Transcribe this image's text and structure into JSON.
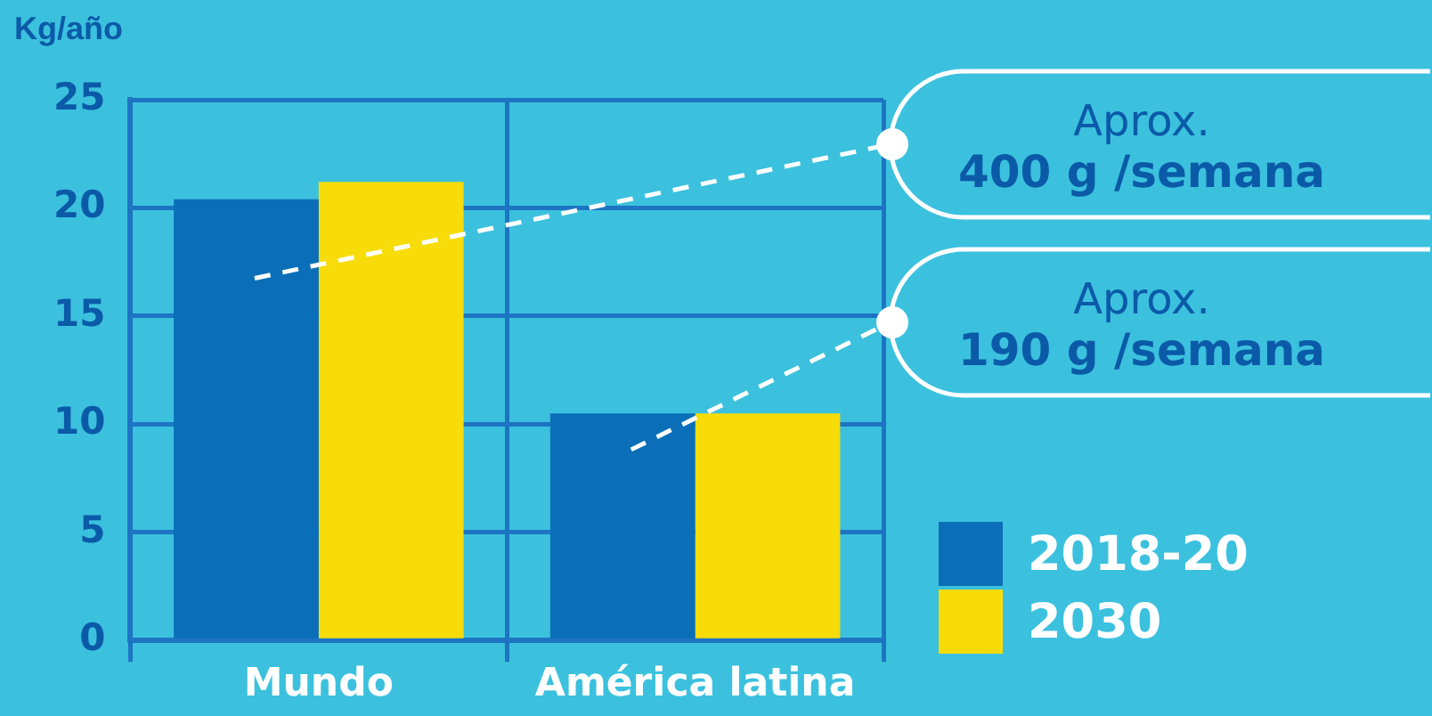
{
  "chart_data": {
    "type": "bar",
    "ylabel": "Kg/año",
    "categories": [
      "Mundo",
      "América latina"
    ],
    "series": [
      {
        "name": "2018-20",
        "color": "#0a6fb8",
        "values": [
          20.4,
          10.5
        ]
      },
      {
        "name": "2030",
        "color": "#f7dc0a",
        "values": [
          21.2,
          10.5
        ]
      }
    ],
    "ylim": [
      0,
      25
    ],
    "yticks": [
      0,
      5,
      10,
      15,
      20,
      25
    ],
    "grid": true,
    "legend": "bottom right",
    "annotations": [
      "Aprox.\n400 g /semana",
      "Aprox.\n190 g /semana"
    ]
  }
}
